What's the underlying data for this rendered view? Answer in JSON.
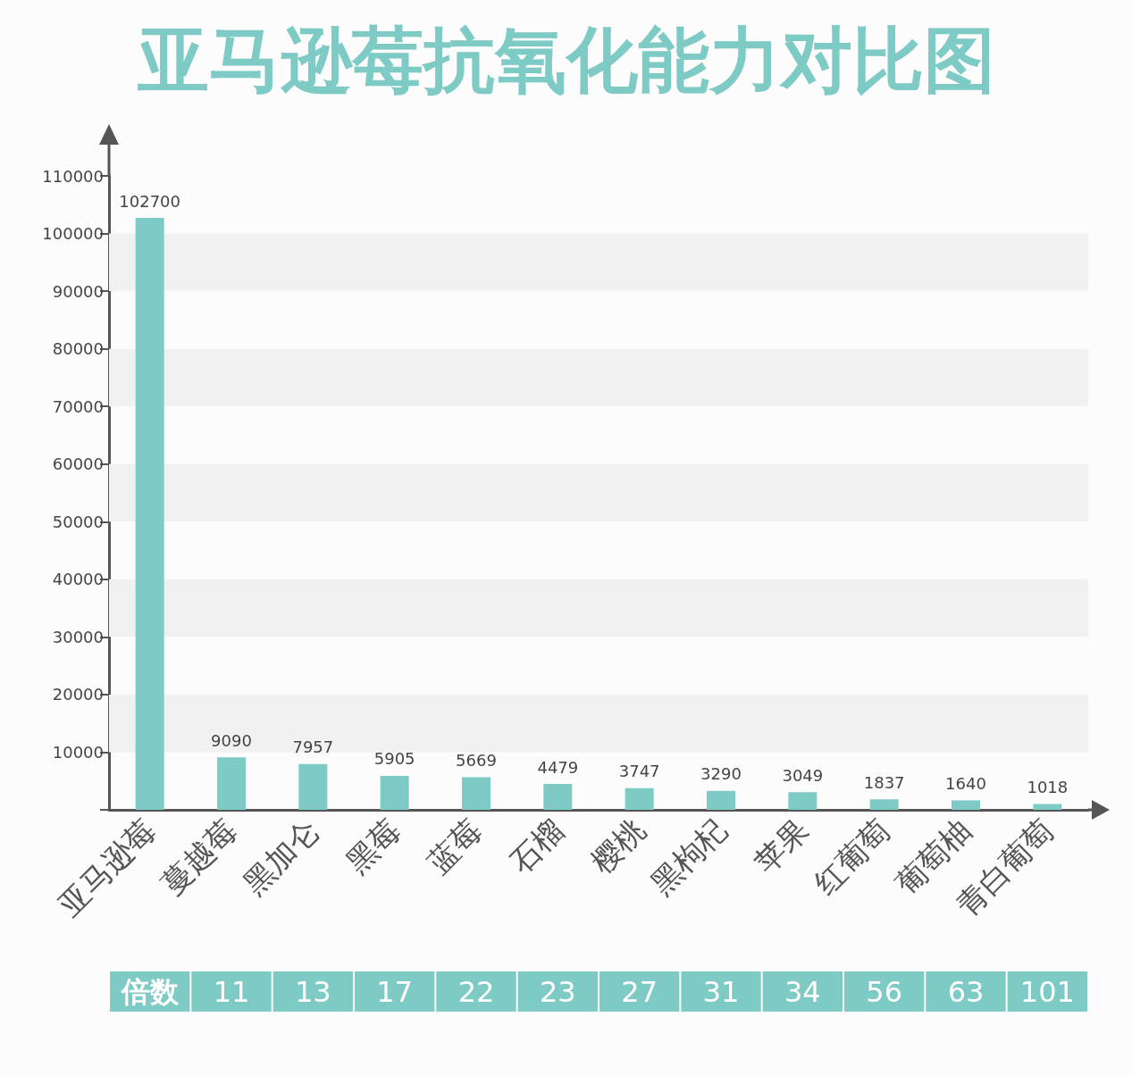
{
  "chart_data": {
    "type": "bar",
    "title": "亚马逊莓抗氧化能力对比图",
    "categories": [
      "亚马逊莓",
      "蔓越莓",
      "黑加仑",
      "黑莓",
      "蓝莓",
      "石榴",
      "樱桃",
      "黑枸杞",
      "苹果",
      "红葡萄",
      "葡萄柚",
      "青白葡萄"
    ],
    "values": [
      102700,
      9090,
      7957,
      5905,
      5669,
      4479,
      3747,
      3290,
      3049,
      1837,
      1640,
      1018
    ],
    "color": "#7ecac5",
    "ylim": [
      0,
      110000
    ],
    "yticks": [
      {
        "value": 0,
        "label": null
      },
      10000,
      20000,
      30000,
      40000,
      50000,
      60000,
      70000,
      80000,
      90000,
      100000,
      110000
    ],
    "bands": [
      {
        "axis": "y",
        "from": 10000,
        "to": 20000,
        "color": "#f1f1f1"
      },
      {
        "axis": "y",
        "from": 30000,
        "to": 40000,
        "color": "#f1f1f1"
      },
      {
        "axis": "y",
        "from": 50000,
        "to": 60000,
        "color": "#f1f1f1"
      },
      {
        "axis": "y",
        "from": 70000,
        "to": 80000,
        "color": "#f1f1f1"
      },
      {
        "axis": "y",
        "from": 90000,
        "to": 100000,
        "color": "#f1f1f1"
      }
    ],
    "data_labels": true,
    "annotations": [
      "倍数",
      "11",
      "13",
      "17",
      "22",
      "23",
      "27",
      "31",
      "34",
      "56",
      "63",
      "101"
    ]
  }
}
